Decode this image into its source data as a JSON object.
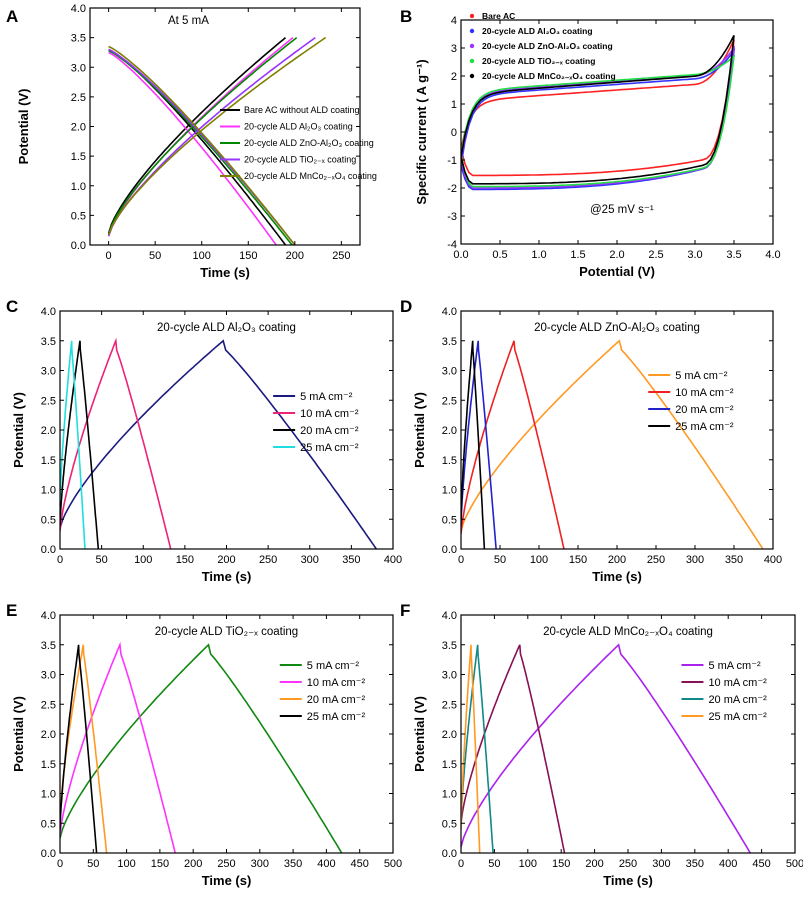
{
  "figure": {
    "description_none": ""
  },
  "chart_data": [
    {
      "id": "A",
      "panel_label": "A",
      "type": "line",
      "title": "At 5 mA",
      "xlabel": "Time (s)",
      "ylabel": "Potential (V)",
      "xlim": [
        -20,
        270
      ],
      "ylim": [
        0,
        4.0
      ],
      "xticks": [
        0,
        50,
        100,
        150,
        200,
        250
      ],
      "yticks": [
        0.0,
        0.5,
        1.0,
        1.5,
        2.0,
        2.5,
        3.0,
        3.5,
        4.0
      ],
      "legend_pos": "center-right",
      "series": [
        {
          "name": "Bare AC without ALD coating",
          "color": "#000000",
          "kind": "gcd",
          "charge_time": 190,
          "discharge_time": 190,
          "v0_charge": 0.2,
          "v0_discharge": 3.3
        },
        {
          "name": "20-cycle ALD Al₂O₃ coating",
          "color": "#ff33ff",
          "kind": "gcd",
          "charge_time": 198,
          "discharge_time": 180,
          "v0_charge": 0.15,
          "v0_discharge": 3.25
        },
        {
          "name": "20-cycle ALD ZnO-Al₂O₃ coating",
          "color": "#008800",
          "kind": "gcd",
          "charge_time": 202,
          "discharge_time": 197,
          "v0_charge": 0.18,
          "v0_discharge": 3.28
        },
        {
          "name": "20-cycle ALD TiO₂₋ₓ coating",
          "color": "#9933ff",
          "kind": "gcd",
          "charge_time": 222,
          "discharge_time": 200,
          "v0_charge": 0.15,
          "v0_discharge": 3.3
        },
        {
          "name": "20-cycle ALD MnCo₂₋ₓO₄ coating",
          "color": "#808000",
          "kind": "gcd",
          "charge_time": 233,
          "discharge_time": 200,
          "v0_charge": 0.17,
          "v0_discharge": 3.35
        }
      ]
    },
    {
      "id": "B",
      "panel_label": "B",
      "type": "line",
      "title": "@25 mV s⁻¹",
      "xlabel": "Potential (V)",
      "ylabel": "Specific current ( A g⁻¹)",
      "xlim": [
        0.0,
        4.0
      ],
      "ylim": [
        -4,
        4
      ],
      "xticks": [
        0.0,
        0.5,
        1.0,
        1.5,
        2.0,
        2.5,
        3.0,
        3.5,
        4.0
      ],
      "yticks": [
        -4,
        -3,
        -2,
        -1,
        0,
        1,
        2,
        3,
        4
      ],
      "legend_pos": "top-left",
      "series": [
        {
          "name": "Bare AC",
          "color": "#ff2222",
          "kind": "cv",
          "upper_start": -0.6,
          "upper_mid": 1.1,
          "upper_end": 1.8,
          "lower_start": -1.55,
          "lower_end": -0.75,
          "peak": 3.3
        },
        {
          "name": "20-cycle ALD Al₂O₃ coating",
          "color": "#3333ff",
          "kind": "cv",
          "upper_start": -1.2,
          "upper_mid": 1.3,
          "upper_end": 2.0,
          "lower_start": -2.05,
          "lower_end": -1.0,
          "peak": 2.9
        },
        {
          "name": "20-cycle ALD ZnO-Al₂O₃ coating",
          "color": "#9933ff",
          "kind": "cv",
          "upper_start": -1.0,
          "upper_mid": 1.4,
          "upper_end": 2.1,
          "lower_start": -2.0,
          "lower_end": -1.0,
          "peak": 3.0
        },
        {
          "name": "20-cycle ALD TiO₂₋ₓ coating",
          "color": "#22dd44",
          "kind": "cv",
          "upper_start": -0.8,
          "upper_mid": 1.45,
          "upper_end": 2.15,
          "lower_start": -1.95,
          "lower_end": -1.0,
          "peak": 2.7
        },
        {
          "name": "20-cycle ALD MnCo₂₋ₓO₄ coating",
          "color": "#000000",
          "kind": "cv",
          "upper_start": -0.9,
          "upper_mid": 1.35,
          "upper_end": 2.1,
          "lower_start": -1.85,
          "lower_end": -0.9,
          "peak": 3.45
        }
      ]
    },
    {
      "id": "C",
      "panel_label": "C",
      "type": "line",
      "title": "20-cycle ALD Al₂O₃ coating",
      "xlabel": "Time (s)",
      "ylabel": "Potential (V)",
      "xlim": [
        0,
        400
      ],
      "ylim": [
        0,
        4.0
      ],
      "xticks": [
        0,
        50,
        100,
        150,
        200,
        250,
        300,
        350,
        400
      ],
      "yticks": [
        0.0,
        0.5,
        1.0,
        1.5,
        2.0,
        2.5,
        3.0,
        3.5,
        4.0
      ],
      "legend_pos": "right",
      "series": [
        {
          "name": "5 mA cm⁻²",
          "color": "#1a1a80",
          "kind": "gcdcycle",
          "t_start": 0,
          "t_peak": 196,
          "t_end": 380,
          "v_start": 0.35
        },
        {
          "name": "10 mA cm⁻²",
          "color": "#ee2277",
          "kind": "gcdcycle",
          "t_start": 0,
          "t_peak": 67,
          "t_end": 133,
          "v_start": 0.3
        },
        {
          "name": "20 mA cm⁻²",
          "color": "#000000",
          "kind": "gcdcycle",
          "t_start": 0,
          "t_peak": 24,
          "t_end": 46,
          "v_start": 0.4
        },
        {
          "name": "25 mA cm⁻²",
          "color": "#22dddd",
          "kind": "gcdcycle",
          "t_start": 0,
          "t_peak": 14,
          "t_end": 30,
          "v_start": 0.8
        }
      ]
    },
    {
      "id": "D",
      "panel_label": "D",
      "type": "line",
      "title": "20-cycle ALD ZnO-Al₂O₃ coating",
      "xlabel": "Time (s)",
      "ylabel": "Potential (V)",
      "xlim": [
        0,
        400
      ],
      "ylim": [
        0,
        4.0
      ],
      "xticks": [
        0,
        50,
        100,
        150,
        200,
        250,
        300,
        350,
        400
      ],
      "yticks": [
        0.0,
        0.5,
        1.0,
        1.5,
        2.0,
        2.5,
        3.0,
        3.5,
        4.0
      ],
      "legend_pos": "right",
      "series": [
        {
          "name": "5 mA cm⁻²",
          "color": "#ff9922",
          "kind": "gcdcycle",
          "t_start": 0,
          "t_peak": 203,
          "t_end": 387,
          "v_start": 0.3
        },
        {
          "name": "10 mA cm⁻²",
          "color": "#ee2222",
          "kind": "gcdcycle",
          "t_start": 0,
          "t_peak": 68,
          "t_end": 132,
          "v_start": 0.25
        },
        {
          "name": "20 mA cm⁻²",
          "color": "#2222cc",
          "kind": "gcdcycle",
          "t_start": 0,
          "t_peak": 22,
          "t_end": 45,
          "v_start": 0.4
        },
        {
          "name": "25 mA cm⁻²",
          "color": "#000000",
          "kind": "gcdcycle",
          "t_start": 0,
          "t_peak": 15,
          "t_end": 30,
          "v_start": 0.5
        }
      ]
    },
    {
      "id": "E",
      "panel_label": "E",
      "type": "line",
      "title": "20-cycle ALD TiO₂₋ₓ coating",
      "xlabel": "Time (s)",
      "ylabel": "Potential (V)",
      "xlim": [
        0,
        500
      ],
      "ylim": [
        0,
        4.0
      ],
      "xticks": [
        0,
        50,
        100,
        150,
        200,
        250,
        300,
        350,
        400,
        450,
        500
      ],
      "yticks": [
        0.0,
        0.5,
        1.0,
        1.5,
        2.0,
        2.5,
        3.0,
        3.5,
        4.0
      ],
      "legend_pos": "right",
      "series": [
        {
          "name": "5 mA cm⁻²",
          "color": "#118811",
          "kind": "gcdcycle",
          "t_start": 0,
          "t_peak": 223,
          "t_end": 423,
          "v_start": 0.25
        },
        {
          "name": "10 mA cm⁻²",
          "color": "#ff33ff",
          "kind": "gcdcycle",
          "t_start": 0,
          "t_peak": 90,
          "t_end": 173,
          "v_start": 0.3
        },
        {
          "name": "20 mA cm⁻²",
          "color": "#ff9922",
          "kind": "gcdcycle",
          "t_start": 0,
          "t_peak": 35,
          "t_end": 70,
          "v_start": 0.6
        },
        {
          "name": "25 mA cm⁻²",
          "color": "#000000",
          "kind": "gcdcycle",
          "t_start": 0,
          "t_peak": 28,
          "t_end": 55,
          "v_start": 0.4
        }
      ]
    },
    {
      "id": "F",
      "panel_label": "F",
      "type": "line",
      "title": "20-cycle ALD MnCo₂₋ₓO₄ coating",
      "xlabel": "Time (s)",
      "ylabel": "Potential (V)",
      "xlim": [
        0,
        500
      ],
      "ylim": [
        0,
        4.0
      ],
      "xticks": [
        0,
        50,
        100,
        150,
        200,
        250,
        300,
        350,
        400,
        450,
        500
      ],
      "yticks": [
        0.0,
        0.5,
        1.0,
        1.5,
        2.0,
        2.5,
        3.0,
        3.5,
        4.0
      ],
      "legend_pos": "right",
      "series": [
        {
          "name": "5 mA cm⁻²",
          "color": "#aa22ee",
          "kind": "gcdcycle",
          "t_start": 0,
          "t_peak": 236,
          "t_end": 433,
          "v_start": 0.1
        },
        {
          "name": "10 mA cm⁻²",
          "color": "#881155",
          "kind": "gcdcycle",
          "t_start": 0,
          "t_peak": 88,
          "t_end": 155,
          "v_start": 0.5
        },
        {
          "name": "20 mA cm⁻²",
          "color": "#118888",
          "kind": "gcdcycle",
          "t_start": 0,
          "t_peak": 25,
          "t_end": 48,
          "v_start": 0.5
        },
        {
          "name": "25 mA cm⁻²",
          "color": "#ff9922",
          "kind": "gcdcycle",
          "t_start": 0,
          "t_peak": 15,
          "t_end": 28,
          "v_start": 0.4
        }
      ]
    }
  ]
}
